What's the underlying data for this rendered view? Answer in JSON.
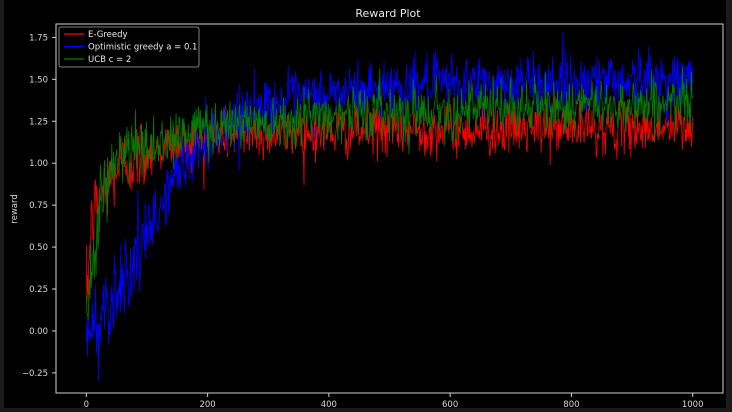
{
  "chart_data": {
    "type": "line",
    "title": "Reward Plot",
    "xlabel": "",
    "ylabel": "reward",
    "xlim": [
      -50,
      1050
    ],
    "ylim": [
      -0.37,
      1.83
    ],
    "xticks": [
      0,
      200,
      400,
      600,
      800,
      1000
    ],
    "yticks": [
      -0.25,
      0.0,
      0.25,
      0.5,
      0.75,
      1.0,
      1.25,
      1.5,
      1.75
    ],
    "xtick_labels": [
      "0",
      "200",
      "400",
      "600",
      "800",
      "1000"
    ],
    "ytick_labels": [
      "−0.25",
      "0.00",
      "0.25",
      "0.50",
      "0.75",
      "1.00",
      "1.25",
      "1.50",
      "1.75"
    ],
    "grid": false,
    "legend_position": "top-left",
    "series": [
      {
        "name": "E-Greedy",
        "color": "#ff0000",
        "x": [
          0,
          10,
          20,
          30,
          40,
          50,
          60,
          80,
          100,
          120,
          150,
          200,
          250,
          300,
          400,
          500,
          600,
          700,
          800,
          900,
          1000
        ],
        "values": [
          0.2,
          0.68,
          0.78,
          0.85,
          0.92,
          0.97,
          1.0,
          1.03,
          1.06,
          1.09,
          1.12,
          1.15,
          1.18,
          1.18,
          1.19,
          1.2,
          1.2,
          1.2,
          1.21,
          1.21,
          1.21
        ]
      },
      {
        "name": "Optimistic greedy a = 0.1",
        "color": "#0000ff",
        "x": [
          0,
          10,
          20,
          30,
          40,
          50,
          60,
          80,
          100,
          120,
          150,
          200,
          250,
          300,
          400,
          500,
          600,
          700,
          800,
          900,
          1000
        ],
        "values": [
          -0.05,
          0.0,
          0.05,
          0.15,
          0.2,
          0.25,
          0.32,
          0.42,
          0.55,
          0.72,
          0.95,
          1.15,
          1.28,
          1.35,
          1.41,
          1.45,
          1.47,
          1.48,
          1.49,
          1.5,
          1.5
        ]
      },
      {
        "name": "UCB c = 2",
        "color": "#008000",
        "x": [
          0,
          10,
          20,
          30,
          40,
          50,
          60,
          80,
          100,
          120,
          150,
          200,
          250,
          300,
          400,
          500,
          600,
          700,
          800,
          900,
          1000
        ],
        "values": [
          0.05,
          0.45,
          0.7,
          0.85,
          0.95,
          1.0,
          1.04,
          1.08,
          1.1,
          1.13,
          1.17,
          1.22,
          1.24,
          1.26,
          1.29,
          1.31,
          1.32,
          1.33,
          1.34,
          1.35,
          1.36
        ]
      }
    ]
  }
}
